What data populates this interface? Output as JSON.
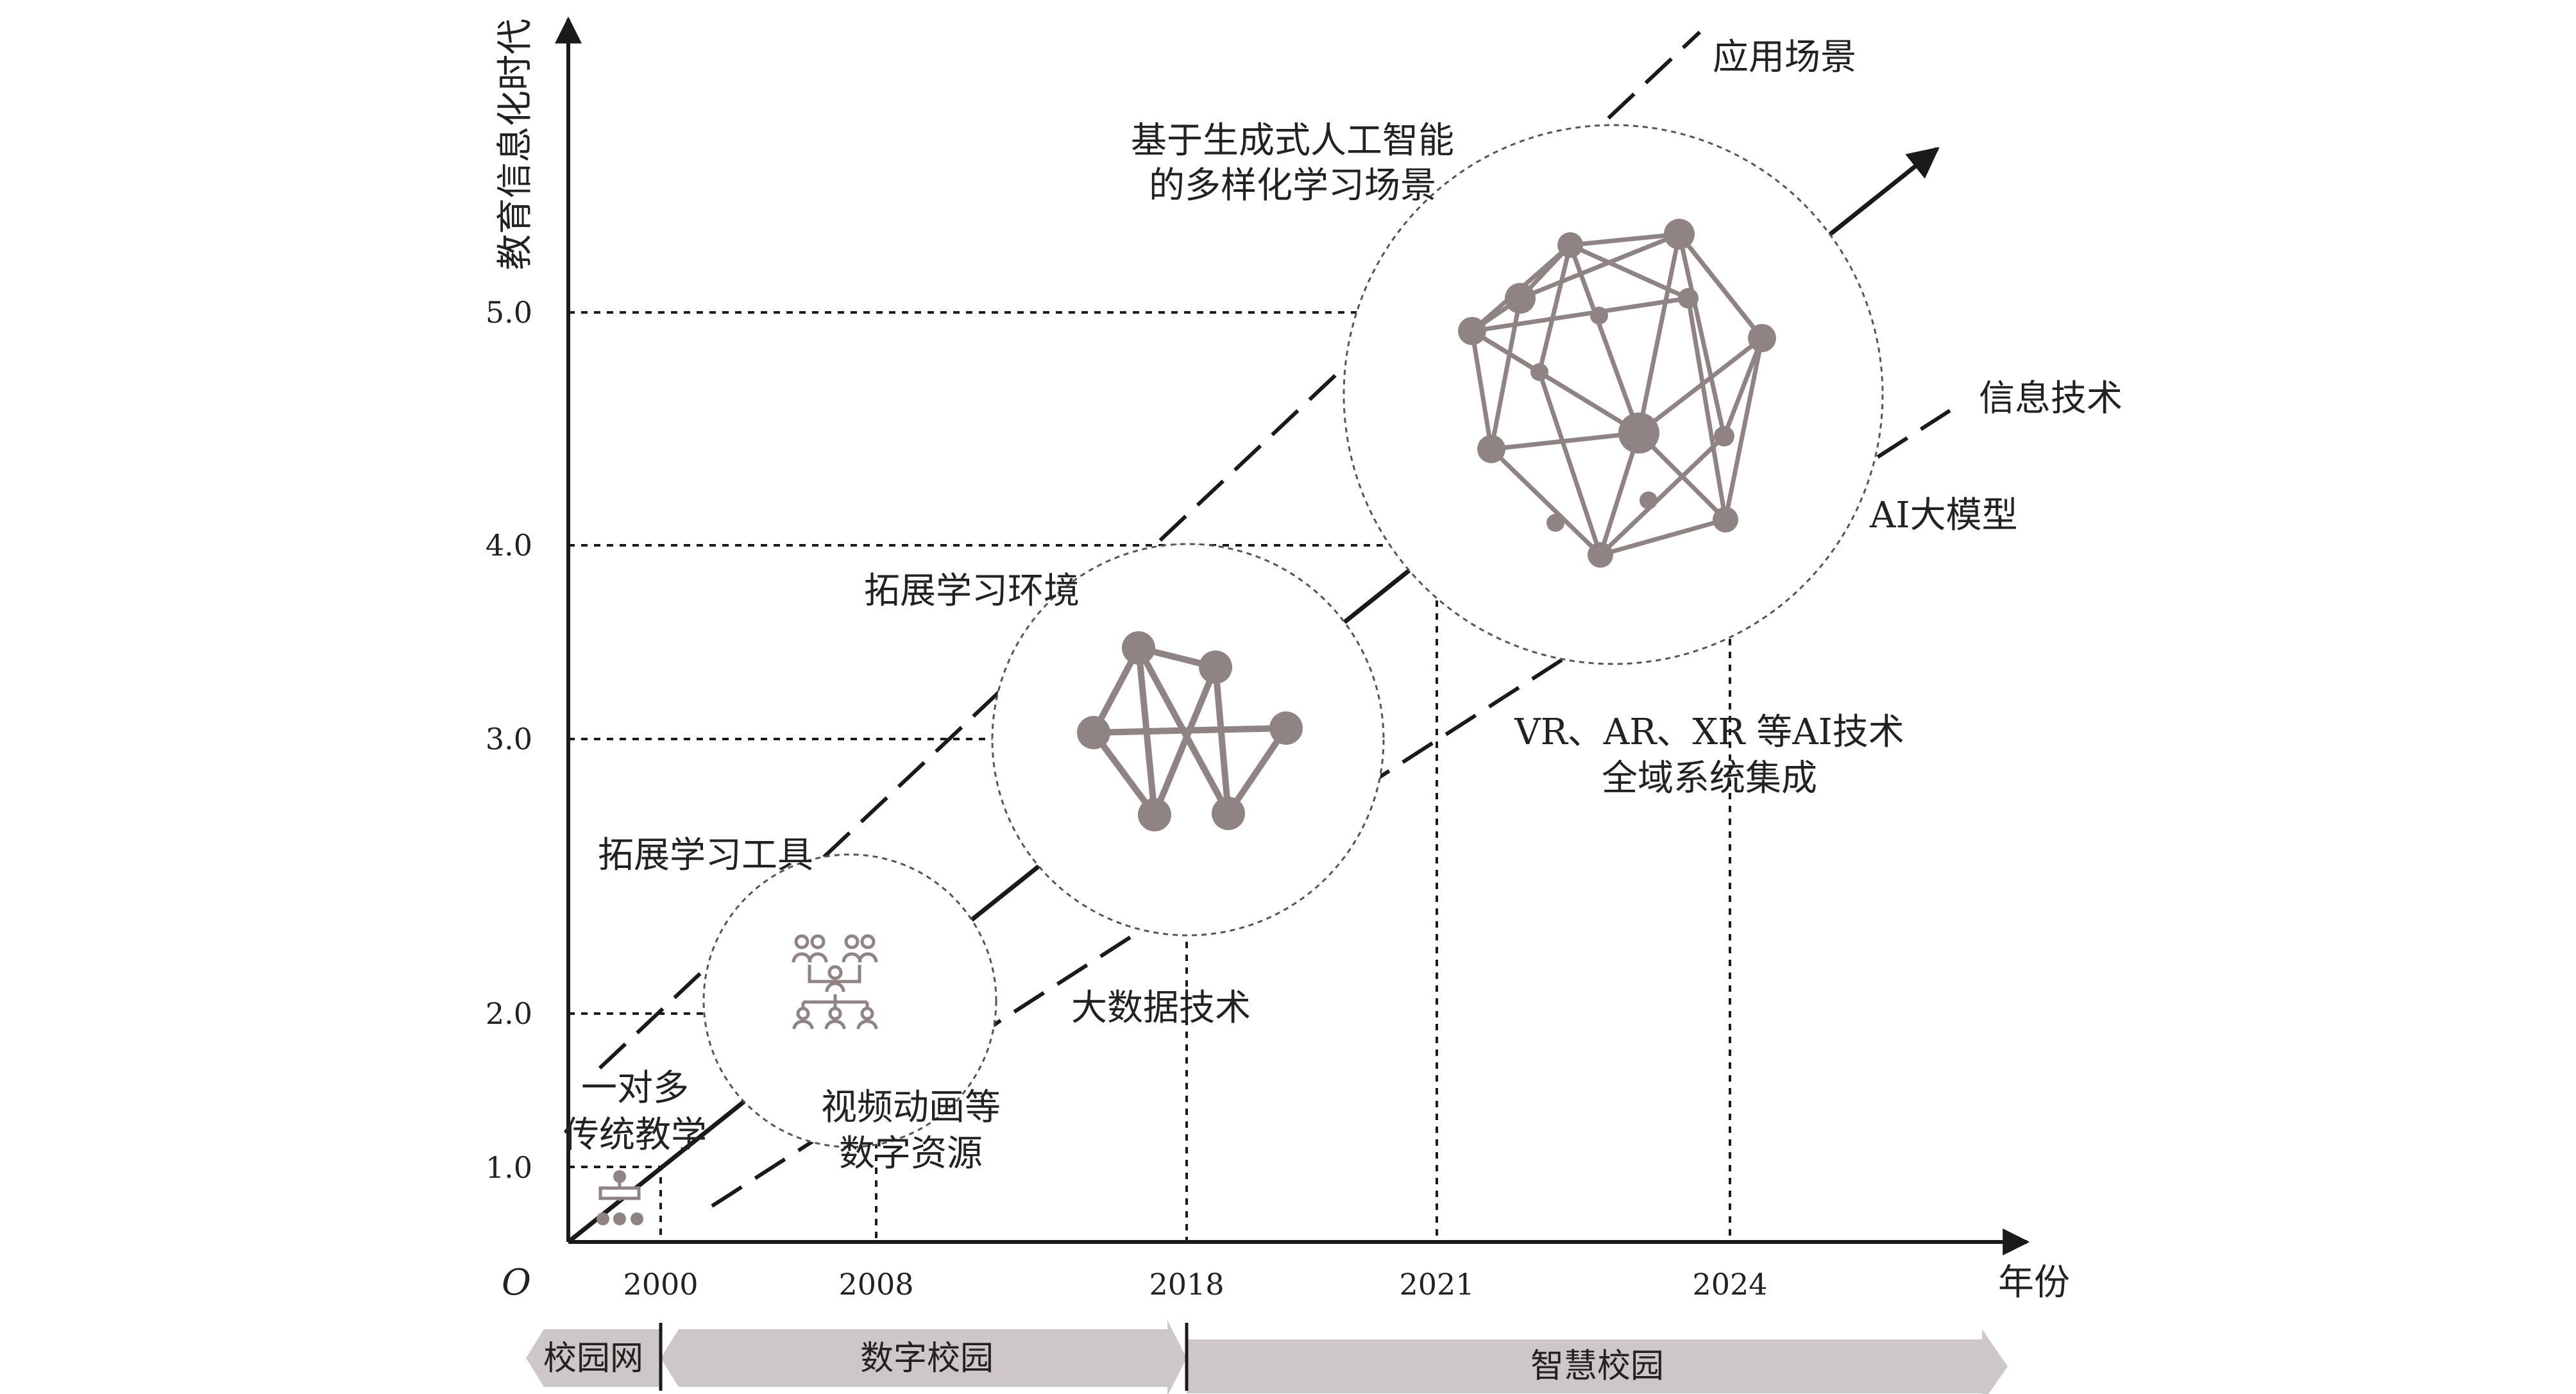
{
  "axes": {
    "origin_label": "O",
    "y_title": "教育信息化时代",
    "x_title": "年份",
    "y_ticks": [
      "1.0",
      "2.0",
      "3.0",
      "4.0",
      "5.0"
    ],
    "x_ticks": [
      "2000",
      "2008",
      "2018",
      "2021",
      "2024"
    ]
  },
  "lines": {
    "upper": "应用场景",
    "lower": "信息技术"
  },
  "stages": [
    {
      "top": "一对多",
      "bottom": "传统教学"
    },
    {
      "top": "拓展学习工具",
      "bottom_1": "视频动画等",
      "bottom_2": "数字资源"
    },
    {
      "top": "拓展学习环境",
      "bottom": "大数据技术"
    },
    {
      "top_1": "基于生成式人工智能",
      "top_2": "的多样化学习场景",
      "side": "AI大模型",
      "bottom_1": "VR、AR、XR 等AI技术",
      "bottom_2": "全域系统集成"
    }
  ],
  "eras": [
    "校园网",
    "数字校园",
    "智慧校园"
  ],
  "colors": {
    "axis": "#1a1a1a",
    "icon": "#8f8483",
    "band": "#cdc8c7",
    "guide": "#1a1a1a"
  },
  "icons": [
    "hierarchy-icon",
    "org-chart-icon",
    "star-network-icon",
    "polyhedron-network-icon"
  ]
}
